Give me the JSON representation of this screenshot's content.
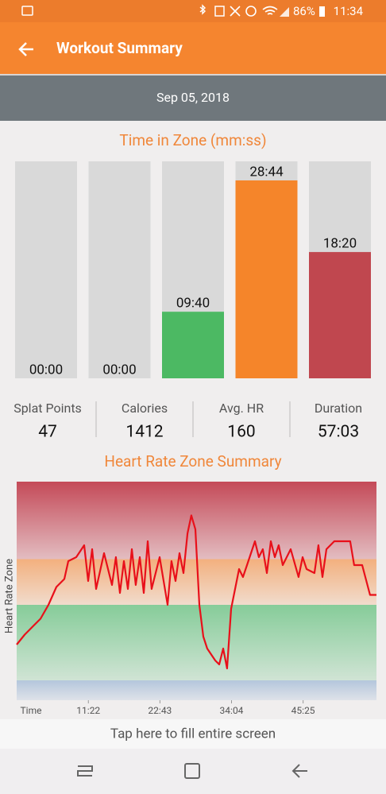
{
  "status_bar": {
    "battery": "86%",
    "time": "11:34"
  },
  "header": {
    "title": "Workout Summary"
  },
  "date": "Sep 05, 2018",
  "chart_data": [
    {
      "type": "bar",
      "title": "Time in Zone (mm:ss)",
      "values": [
        0,
        0,
        580,
        1724,
        1100
      ],
      "value_labels": [
        "00:00",
        "00:00",
        "09:40",
        "28:44",
        "18:20"
      ],
      "colors": [
        "#d9d9d9",
        "#d9d9d9",
        "#4cb963",
        "#f5852a",
        "#c0474f"
      ],
      "ylim": [
        0,
        1890
      ]
    },
    {
      "type": "line",
      "title": "Heart Rate Zone Summary",
      "y_label": "Heart Rate Zone",
      "x_label": "Time",
      "xlim": [
        0,
        3423
      ],
      "ylim": [
        90,
        200
      ],
      "xticks": [
        {
          "value": 682,
          "label": "11:22"
        },
        {
          "value": 1363,
          "label": "22:43"
        },
        {
          "value": 2044,
          "label": "34:04"
        },
        {
          "value": 2725,
          "label": "45:25"
        }
      ],
      "zones": [
        {
          "from": 90,
          "to": 100,
          "color": "#b4c6dc"
        },
        {
          "from": 100,
          "to": 138,
          "color": "#86cc99"
        },
        {
          "from": 138,
          "to": 161,
          "color": "#f3b07e"
        },
        {
          "from": 161,
          "to": 200,
          "color": "#c44a58"
        }
      ],
      "x": [
        0,
        76,
        151,
        227,
        302,
        378,
        453,
        491,
        567,
        642,
        680,
        718,
        756,
        831,
        907,
        944,
        982,
        1020,
        1058,
        1096,
        1133,
        1171,
        1209,
        1247,
        1284,
        1360,
        1436,
        1473,
        1511,
        1549,
        1587,
        1625,
        1662,
        1700,
        1738,
        1776,
        1813,
        1889,
        1927,
        1965,
        2002,
        2040,
        2078,
        2116,
        2153,
        2191,
        2267,
        2304,
        2342,
        2380,
        2418,
        2456,
        2493,
        2531,
        2607,
        2682,
        2720,
        2758,
        2833,
        2871,
        2909,
        2947,
        3022,
        3098,
        3173,
        3211,
        3287,
        3362,
        3423
      ],
      "series": [
        {
          "color": "#e8101a",
          "values": [
            118,
            123,
            127,
            131,
            138,
            147,
            151,
            160,
            162,
            168,
            150,
            166,
            146,
            164,
            148,
            162,
            144,
            160,
            146,
            166,
            148,
            162,
            144,
            170,
            146,
            162,
            138,
            160,
            150,
            164,
            154,
            174,
            183,
            176,
            138,
            122,
            116,
            110,
            108,
            116,
            106,
            136,
            146,
            156,
            152,
            158,
            170,
            162,
            166,
            154,
            170,
            162,
            168,
            158,
            166,
            152,
            162,
            156,
            154,
            168,
            152,
            166,
            170,
            170,
            170,
            158,
            158,
            143,
            143
          ]
        }
      ]
    }
  ],
  "stats": [
    {
      "label": "Splat Points",
      "value": 47
    },
    {
      "label": "Calories",
      "value": 1412
    },
    {
      "label": "Avg. HR",
      "value": 160
    },
    {
      "label": "Duration",
      "value": "57:03"
    }
  ],
  "footer": {
    "button": "Tap here to fill entire screen"
  }
}
